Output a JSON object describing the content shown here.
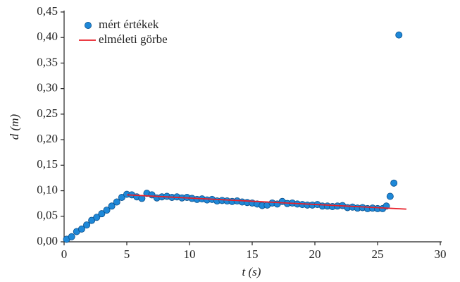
{
  "chart_data": {
    "type": "scatter",
    "xlabel": "t (s)",
    "ylabel": "d (m)",
    "xlim": [
      0,
      30
    ],
    "xticks": [
      0,
      5,
      10,
      15,
      20,
      25,
      30
    ],
    "ylim": [
      0,
      0.45
    ],
    "yticks": [
      {
        "value": 0,
        "label": "0,00"
      },
      {
        "value": 0.05,
        "label": "0,05"
      },
      {
        "value": 0.1,
        "label": "0,10"
      },
      {
        "value": 0.15,
        "label": "0,15"
      },
      {
        "value": 0.2,
        "label": "0,20"
      },
      {
        "value": 0.25,
        "label": "0,25"
      },
      {
        "value": 0.3,
        "label": "0,30"
      },
      {
        "value": 0.35,
        "label": "0,35"
      },
      {
        "value": 0.4,
        "label": "0,40"
      },
      {
        "value": 0.45,
        "label": "0,45"
      }
    ],
    "legend": "upper left",
    "series": [
      {
        "name": "mért értékek",
        "type": "scatter",
        "color": "#1e88d8",
        "x": [
          0.2,
          0.6,
          1.0,
          1.4,
          1.8,
          2.2,
          2.6,
          3.0,
          3.4,
          3.8,
          4.2,
          4.6,
          5.0,
          5.4,
          5.8,
          6.2,
          6.6,
          7.0,
          7.4,
          7.8,
          8.2,
          8.6,
          9.0,
          9.4,
          9.8,
          10.2,
          10.6,
          11.0,
          11.4,
          11.8,
          12.2,
          12.6,
          13.0,
          13.4,
          13.8,
          14.2,
          14.6,
          15.0,
          15.4,
          15.8,
          16.2,
          16.6,
          17.0,
          17.4,
          17.8,
          18.2,
          18.6,
          19.0,
          19.4,
          19.8,
          20.2,
          20.6,
          21.0,
          21.4,
          21.8,
          22.2,
          22.6,
          23.0,
          23.4,
          23.8,
          24.2,
          24.6,
          25.0,
          25.4,
          25.7,
          26.0,
          26.3,
          26.7
        ],
        "values": [
          0.005,
          0.01,
          0.02,
          0.025,
          0.033,
          0.042,
          0.048,
          0.055,
          0.062,
          0.07,
          0.078,
          0.087,
          0.093,
          0.092,
          0.088,
          0.085,
          0.095,
          0.092,
          0.086,
          0.088,
          0.089,
          0.087,
          0.088,
          0.086,
          0.087,
          0.085,
          0.083,
          0.084,
          0.082,
          0.083,
          0.08,
          0.081,
          0.08,
          0.079,
          0.08,
          0.078,
          0.077,
          0.076,
          0.074,
          0.071,
          0.072,
          0.076,
          0.074,
          0.079,
          0.075,
          0.076,
          0.074,
          0.073,
          0.072,
          0.072,
          0.073,
          0.07,
          0.07,
          0.069,
          0.07,
          0.071,
          0.067,
          0.068,
          0.066,
          0.067,
          0.065,
          0.066,
          0.065,
          0.065,
          0.07,
          0.089,
          0.115,
          0.405
        ]
      },
      {
        "name": "elméleti görbe",
        "type": "line",
        "color": "#e8202a",
        "x": [
          5,
          27.3
        ],
        "values": [
          0.092,
          0.064
        ]
      }
    ]
  }
}
